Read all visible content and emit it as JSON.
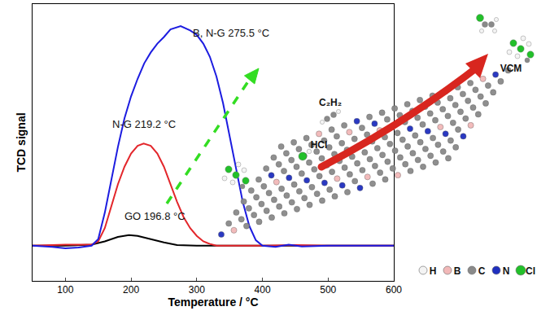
{
  "chart_data": {
    "type": "line",
    "xlabel": "Temperature / °C",
    "ylabel": "TCD signal",
    "xlim": [
      50,
      600
    ],
    "xticks": [
      100,
      200,
      300,
      400,
      500,
      600
    ],
    "ylim": [
      -0.16,
      1.1
    ],
    "tick_labels": "x",
    "grid": false,
    "series": [
      {
        "name": "GO",
        "color": "#000000",
        "x": [
          50,
          100,
          140,
          160,
          180,
          196.8,
          210,
          230,
          250,
          270,
          300,
          400,
          500,
          600
        ],
        "values": [
          0.0,
          0.0,
          0.005,
          0.02,
          0.04,
          0.048,
          0.045,
          0.03,
          0.015,
          0.003,
          0.0,
          0.0,
          0.0,
          0.0
        ]
      },
      {
        "name": "N-G",
        "color": "#e3262b",
        "x": [
          50,
          100,
          140,
          150,
          160,
          170,
          180,
          190,
          200,
          210,
          219.2,
          230,
          240,
          250,
          260,
          270,
          280,
          290,
          300,
          310,
          320,
          330,
          400,
          450,
          500,
          600
        ],
        "values": [
          0.0,
          0.005,
          0.005,
          0.02,
          0.08,
          0.18,
          0.28,
          0.36,
          0.42,
          0.455,
          0.465,
          0.455,
          0.42,
          0.36,
          0.28,
          0.2,
          0.13,
          0.08,
          0.045,
          0.02,
          0.008,
          0.0,
          0.0,
          0.003,
          0.0,
          0.0
        ]
      },
      {
        "name": "B, N-G",
        "color": "#1c1ce0",
        "x": [
          50,
          80,
          100,
          120,
          140,
          150,
          160,
          170,
          180,
          190,
          200,
          210,
          220,
          230,
          240,
          250,
          260,
          275.5,
          290,
          300,
          310,
          320,
          330,
          340,
          350,
          360,
          370,
          380,
          390,
          400,
          420,
          440,
          460,
          500,
          550,
          600
        ],
        "values": [
          0.0,
          -0.005,
          -0.012,
          -0.008,
          0.0,
          0.03,
          0.15,
          0.3,
          0.45,
          0.58,
          0.68,
          0.76,
          0.83,
          0.88,
          0.92,
          0.95,
          0.985,
          1.0,
          0.98,
          0.96,
          0.92,
          0.86,
          0.77,
          0.65,
          0.5,
          0.35,
          0.2,
          0.09,
          0.025,
          0.0,
          -0.005,
          0.005,
          -0.003,
          0.0,
          0.0,
          0.0
        ]
      }
    ],
    "annotations": [
      {
        "text": "GO 196.8 °C",
        "series": "GO"
      },
      {
        "text": "N-G 219.2 °C",
        "series": "N-G"
      },
      {
        "text": "B, N-G 275.5 °C",
        "series": "B, N-G"
      }
    ]
  },
  "diagram": {
    "labels": [
      "C₂H₂",
      "HCl",
      "VCM"
    ],
    "legend_items": [
      {
        "label": "H",
        "color": "#f4f4f4"
      },
      {
        "label": "B",
        "color": "#f2b8b8"
      },
      {
        "label": "C",
        "color": "#8a8a8a"
      },
      {
        "label": "N",
        "color": "#1f2fbf"
      },
      {
        "label": "Cl",
        "color": "#22c02a"
      }
    ]
  }
}
